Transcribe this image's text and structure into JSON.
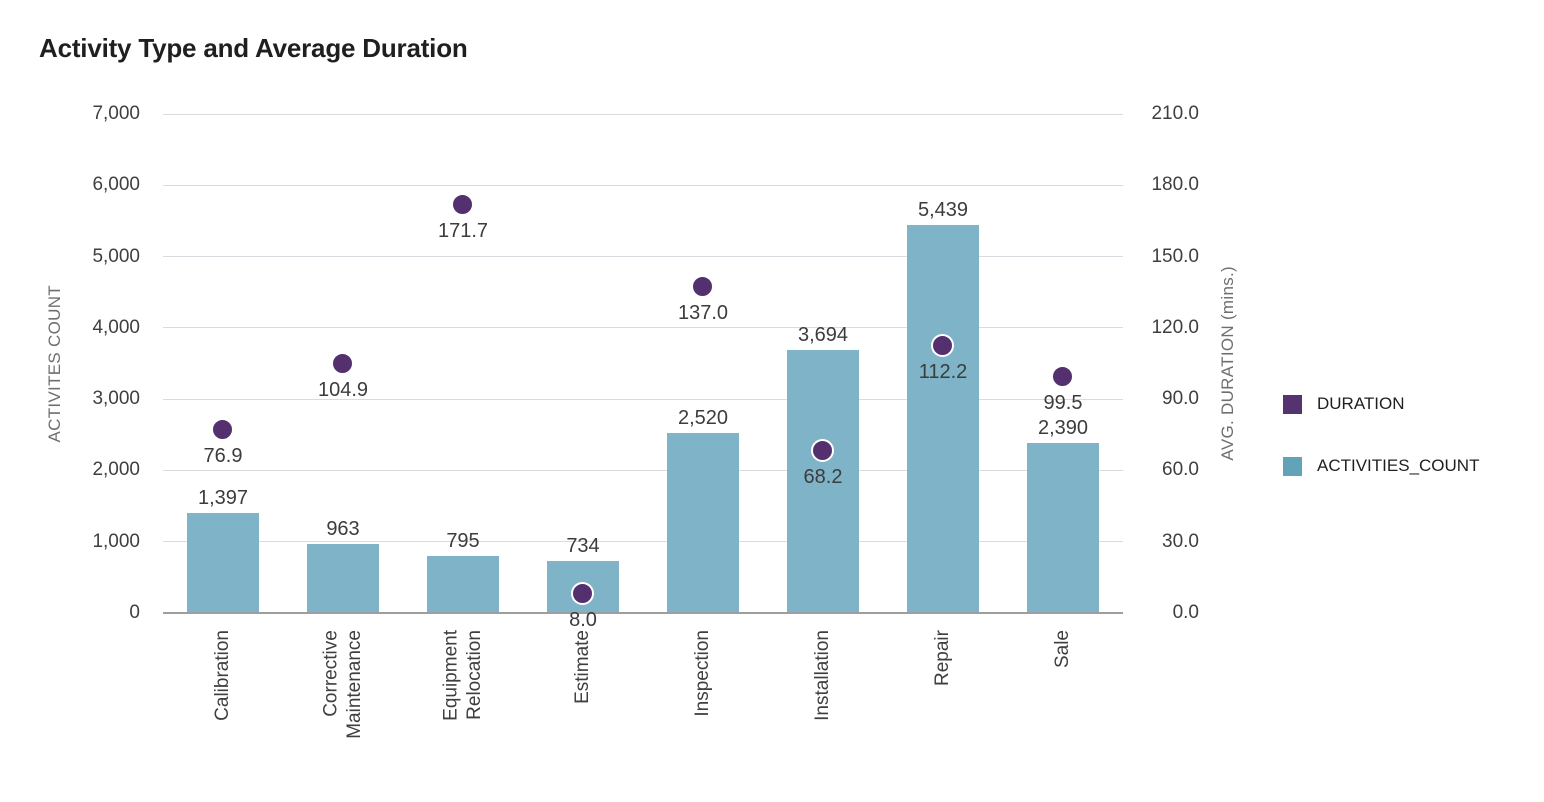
{
  "title": "Activity Type and Average Duration",
  "chart_data": {
    "type": "bar",
    "subtype": "combo-bar-and-points-dual-axis",
    "categories": [
      "Calibration",
      "Corrective\nMaintenance",
      "Equipment\nRelocation",
      "Estimate",
      "Inspection",
      "Installation",
      "Repair",
      "Sale"
    ],
    "series": [
      {
        "name": "ACTIVITIES_COUNT",
        "mark": "bar",
        "axis": "left",
        "values": [
          1397,
          963,
          795,
          734,
          2520,
          3694,
          5439,
          2390
        ],
        "labels": [
          "1,397",
          "963",
          "795",
          "734",
          "2,520",
          "3,694",
          "5,439",
          "2,390"
        ]
      },
      {
        "name": "DURATION",
        "mark": "point",
        "axis": "right",
        "values": [
          76.9,
          104.9,
          171.7,
          8.0,
          137.0,
          68.2,
          112.2,
          99.5
        ],
        "labels": [
          "76.9",
          "104.9",
          "171.7",
          "8.0",
          "137.0",
          "68.2",
          "112.2",
          "99.5"
        ]
      }
    ],
    "left_axis": {
      "title": "ACTIVITES COUNT",
      "min": 0,
      "max": 7000,
      "step": 1000,
      "tick_labels": [
        "0",
        "1,000",
        "2,000",
        "3,000",
        "4,000",
        "5,000",
        "6,000",
        "7,000"
      ]
    },
    "right_axis": {
      "title": "AVG. DURATION (mins.)",
      "min": 0,
      "max": 210,
      "step": 30,
      "tick_labels": [
        "0.0",
        "30.0",
        "60.0",
        "90.0",
        "120.0",
        "150.0",
        "180.0",
        "210.0"
      ]
    },
    "legend": [
      {
        "label": "DURATION",
        "color": "#553370"
      },
      {
        "label": "ACTIVITIES_COUNT",
        "color": "#62A3BA"
      }
    ],
    "grid": true,
    "legend_position": "right"
  },
  "colors": {
    "bar": "#7FB3C8",
    "point": "#54316E",
    "gridline": "#D8DCE1",
    "axis_line": "#9E9E9E",
    "tick_text": "#3F3F3F",
    "label_text": "#3C3C3C",
    "axis_title_text": "#6F6F6F",
    "title_text": "#1F1F1F",
    "legend_text": "#1F1F1F"
  }
}
